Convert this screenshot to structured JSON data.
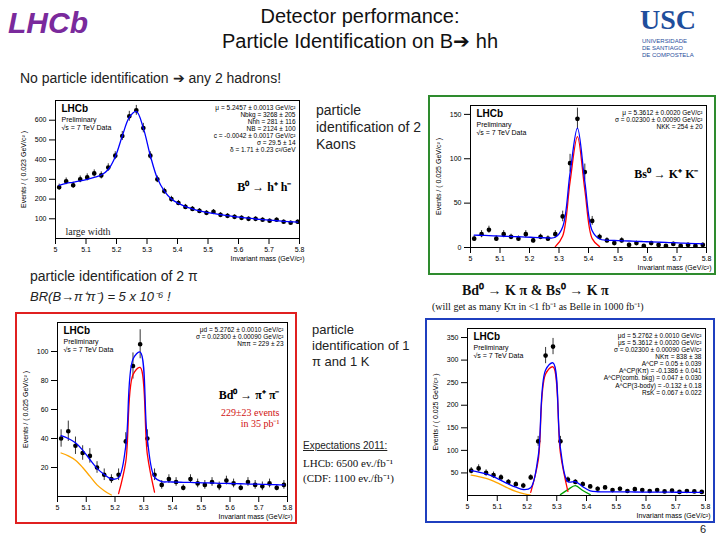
{
  "slide": {
    "logo_left": "LHCb",
    "logo_right": [
      "USC",
      "UNIVERSIDADE",
      "DE SANTIAGO",
      "DE COMPOSTELA"
    ],
    "title": [
      "Detector performance:",
      "Particle Identification on B➔ hh"
    ],
    "subtitle": "No particle identification ➔ any 2 hadrons!",
    "pid_kk": "particle identification of 2 Kaons",
    "pid_pipi": "particle identification of 2 π",
    "br": "BR(B→π⁺π⁻) = 5 x 10⁻⁶ !",
    "pid_kpi": "particle identification of 1 π and 1 K",
    "kpi_channel": "Bd⁰ → K π  &  Bs⁰ → K π",
    "kpi_note": "(will get as many Kπ in <1 fb⁻¹ as Belle in 1000 fb⁻¹)",
    "expectations": [
      "Expectations 2011:",
      "LHCb: 6500 ev./fb⁻¹",
      "(CDF: 1100 ev./fb⁻¹)"
    ],
    "page": "6"
  },
  "chart_data": [
    {
      "type": "scatter",
      "x_label": "Invariant mass (GeV/c²)",
      "y_label": "Events / ( 0.023 GeV/c² )",
      "channel": "B⁰ → h⁺ h⁻",
      "annotation": [
        "large width"
      ],
      "watermark": [
        "LHCb",
        "Preliminary",
        "√s = 7 TeV Data"
      ],
      "stats": [
        "μ = 5.2457 ± 0.0013 GeV/c²",
        "Nbkg = 3268 ± 205",
        "Nhh = 281 ± 116",
        "NB = 2124 ± 100",
        "c = -0.0042 ± 0.0017 GeV/c²",
        "σ = 29.5 ± 14",
        "δ = 1.71 ± 0.23 c²/GeV"
      ],
      "x": [
        5.012,
        5.035,
        5.058,
        5.081,
        5.104,
        5.127,
        5.15,
        5.173,
        5.196,
        5.219,
        5.242,
        5.265,
        5.288,
        5.311,
        5.334,
        5.357,
        5.38,
        5.403,
        5.426,
        5.449,
        5.472,
        5.495,
        5.518,
        5.541,
        5.564,
        5.587,
        5.61,
        5.633,
        5.656,
        5.679,
        5.702,
        5.725,
        5.748,
        5.771,
        5.794
      ],
      "series": [
        {
          "type": "scatter",
          "marker": "circle",
          "color": "#000000",
          "values": [
            260,
            290,
            270,
            300,
            310,
            330,
            320,
            360,
            420,
            520,
            620,
            650,
            560,
            420,
            300,
            240,
            200,
            180,
            160,
            150,
            140,
            130,
            135,
            120,
            115,
            110,
            105,
            100,
            100,
            95,
            90,
            95,
            85,
            80,
            85
          ],
          "errors": [
            16,
            17,
            16,
            17,
            18,
            18,
            18,
            19,
            20,
            23,
            25,
            25,
            24,
            20,
            17,
            15,
            14,
            13,
            13,
            12,
            12,
            11,
            12,
            11,
            11,
            10,
            10,
            10,
            10,
            10,
            9,
            10,
            9,
            9,
            9
          ]
        },
        {
          "type": "line",
          "line_style": "solid",
          "color": "#0000ff",
          "values": [
            270,
            280,
            285,
            292,
            300,
            310,
            322,
            350,
            415,
            520,
            615,
            645,
            560,
            420,
            305,
            240,
            200,
            178,
            162,
            150,
            140,
            133,
            127,
            121,
            116,
            111,
            107,
            103,
            99,
            96,
            93,
            90,
            87,
            85,
            83
          ]
        }
      ],
      "xlim": [
        5,
        5.8
      ],
      "xticks": [
        5,
        5.1,
        5.2,
        5.3,
        5.4,
        5.5,
        5.6,
        5.7,
        5.8
      ],
      "ylim": [
        0,
        700
      ],
      "yticks": [
        100,
        200,
        300,
        400,
        500,
        600
      ]
    },
    {
      "type": "scatter",
      "x_label": "Invariant mass (GeV/c²)",
      "y_label": "Events / ( 0.025 GeV/c² )",
      "channel": "Bs⁰ → K⁺ K⁻",
      "watermark": [
        "LHCb",
        "Preliminary",
        "√s = 7 TeV Data"
      ],
      "stats": [
        "μ = 5.3612 ± 0.0020 GeV/c²",
        "σ = 0.02300 ± 0.00090 GeV/c²",
        "NKK = 254 ± 20"
      ],
      "x": [
        5.0125,
        5.0375,
        5.0625,
        5.0875,
        5.1125,
        5.1375,
        5.1625,
        5.1875,
        5.2125,
        5.2375,
        5.2625,
        5.2875,
        5.3125,
        5.3375,
        5.3625,
        5.3875,
        5.4125,
        5.4375,
        5.4625,
        5.4875,
        5.5125,
        5.5375,
        5.5625,
        5.5875,
        5.6125,
        5.6375,
        5.6625,
        5.6875,
        5.7125,
        5.7375,
        5.7625,
        5.7875
      ],
      "series": [
        {
          "type": "scatter",
          "marker": "circle",
          "color": "#000000",
          "values": [
            10,
            15,
            20,
            10,
            15,
            12,
            10,
            15,
            8,
            12,
            10,
            15,
            35,
            95,
            145,
            85,
            30,
            12,
            8,
            5,
            8,
            3,
            5,
            2,
            5,
            3,
            2,
            4,
            2,
            3,
            2,
            3
          ],
          "errors": [
            3,
            4,
            4,
            3,
            4,
            3,
            3,
            4,
            3,
            3,
            3,
            4,
            6,
            10,
            12,
            9,
            5,
            3,
            3,
            2,
            3,
            2,
            2,
            1,
            2,
            2,
            1,
            2,
            1,
            2,
            1,
            2
          ]
        },
        {
          "type": "line",
          "line_style": "solid",
          "color": "#ff0000",
          "values": [
            null,
            null,
            null,
            null,
            null,
            null,
            null,
            null,
            null,
            null,
            null,
            1,
            13,
            74,
            125,
            65,
            10,
            1,
            null,
            null,
            null,
            null,
            null,
            null,
            null,
            null,
            null,
            null,
            null,
            null,
            null,
            null
          ]
        },
        {
          "type": "line",
          "line_style": "solid",
          "color": "#0000ff",
          "values": [
            14,
            13.7,
            13.4,
            13,
            12.7,
            12.4,
            12.1,
            11.8,
            11.4,
            11.1,
            10.8,
            11.5,
            23.2,
            83.8,
            134.5,
            74.2,
            18.9,
            9.6,
            8.2,
            7.9,
            7.6,
            7.3,
            7,
            6.6,
            6.3,
            6,
            5.7,
            5.4,
            5,
            4.7,
            4.4,
            4.1
          ]
        }
      ],
      "xlim": [
        5,
        5.8
      ],
      "xticks": [
        5,
        5.1,
        5.2,
        5.3,
        5.4,
        5.5,
        5.6,
        5.7,
        5.8
      ],
      "ylim": [
        0,
        160
      ],
      "yticks": [
        0,
        50,
        100,
        150
      ]
    },
    {
      "type": "scatter",
      "x_label": "Invariant mass (GeV/c²)",
      "y_label": "Events / ( 0.025 GeV/c² )",
      "channel": "Bd⁰ → π⁺ π⁻",
      "annotation": [
        "229±23 events",
        "in 35 pb⁻¹"
      ],
      "watermark": [
        "LHCb",
        "Preliminary",
        "√s = 7 TeV Data"
      ],
      "stats": [
        "μd = 5.2762 ± 0.0010 GeV/c²",
        "σ = 0.02300 ± 0.00090 GeV/c²",
        "Nππ = 229 ± 23"
      ],
      "x": [
        5.0125,
        5.0375,
        5.0625,
        5.0875,
        5.1125,
        5.1375,
        5.1625,
        5.1875,
        5.2125,
        5.2375,
        5.2625,
        5.2875,
        5.3125,
        5.3375,
        5.3625,
        5.3875,
        5.4125,
        5.4375,
        5.4625,
        5.4875,
        5.5125,
        5.5375,
        5.5625,
        5.5875,
        5.6125,
        5.6375,
        5.6625,
        5.6875,
        5.7125,
        5.7375,
        5.7625,
        5.7875
      ],
      "series": [
        {
          "type": "scatter",
          "marker": "circle",
          "color": "#000000",
          "values": [
            40,
            45,
            35,
            30,
            28,
            20,
            15,
            12,
            15,
            38,
            90,
            105,
            40,
            15,
            8,
            12,
            10,
            6,
            12,
            9,
            8,
            10,
            7,
            11,
            9,
            6,
            10,
            8,
            7,
            9,
            6,
            8
          ],
          "errors": [
            6,
            7,
            6,
            5,
            5,
            4,
            4,
            3,
            4,
            6,
            9,
            10,
            6,
            4,
            3,
            3,
            3,
            2,
            3,
            3,
            3,
            3,
            3,
            3,
            3,
            2,
            3,
            3,
            3,
            3,
            2,
            3
          ]
        },
        {
          "type": "line",
          "line_style": "solid",
          "color": "#ffa500",
          "values": [
            30,
            28,
            25,
            20,
            14,
            8,
            4,
            1,
            null,
            null,
            null,
            null,
            null,
            null,
            null,
            null,
            null,
            null,
            null,
            null,
            null,
            null,
            null,
            null,
            null,
            null,
            null,
            null,
            null,
            null,
            null,
            null
          ]
        },
        {
          "type": "line",
          "line_style": "solid",
          "color": "#ff0000",
          "values": [
            null,
            null,
            null,
            null,
            null,
            null,
            null,
            null,
            2,
            24,
            84,
            89,
            29,
            3,
            null,
            null,
            null,
            null,
            null,
            null,
            null,
            null,
            null,
            null,
            null,
            null,
            null,
            null,
            null,
            null,
            null,
            null
          ]
        },
        {
          "type": "line",
          "line_style": "solid",
          "color": "#0000ff",
          "values": [
            42,
            40,
            37,
            32,
            25.5,
            19.4,
            15.2,
            12.1,
            13,
            34.8,
            94.7,
            99.6,
            39.4,
            13.3,
            10.2,
            10.1,
            9.9,
            9.8,
            9.7,
            9.5,
            9.4,
            9.3,
            9.1,
            9,
            8.9,
            8.8,
            8.6,
            8.5,
            8.4,
            8.2,
            8.1,
            8
          ]
        }
      ],
      "xlim": [
        5,
        5.8
      ],
      "xticks": [
        5,
        5.1,
        5.2,
        5.3,
        5.4,
        5.5,
        5.6,
        5.7,
        5.8
      ],
      "ylim": [
        0,
        120
      ],
      "yticks": [
        20,
        40,
        60,
        80,
        100
      ]
    },
    {
      "type": "scatter",
      "x_label": "Invariant mass (GeV/c²)",
      "y_label": "Events / ( 0.025 GeV/c² )",
      "watermark": [
        "LHCb",
        "Preliminary",
        "√s = 7 TeV Data"
      ],
      "stats": [
        "μd = 5.2762 ± 0.0010 GeV/c²",
        "μs = 5.3612 ± 0.0020 GeV/c²",
        "σ = 0.02300 ± 0.00090 GeV/c²",
        "NKπ = 838 ± 38",
        "A^CP = 0.05 ± 0.039",
        "A^CP(Kπ) = -0.1386 ± 0.041",
        "A^CP(comb. bkg) = 0.047 ± 0.030",
        "A^CP(3-body) = -0.132 ± 0.18",
        "RsK = 0.067 ± 0.022"
      ],
      "x": [
        5.0125,
        5.0375,
        5.0625,
        5.0875,
        5.1125,
        5.1375,
        5.1625,
        5.1875,
        5.2125,
        5.2375,
        5.2625,
        5.2875,
        5.3125,
        5.3375,
        5.3625,
        5.3875,
        5.4125,
        5.4375,
        5.4625,
        5.4875,
        5.5125,
        5.5375,
        5.5625,
        5.5875,
        5.6125,
        5.6375,
        5.6625,
        5.6875,
        5.7125,
        5.7375,
        5.7625,
        5.7875
      ],
      "series": [
        {
          "type": "scatter",
          "marker": "circle",
          "color": "#000000",
          "values": [
            55,
            60,
            50,
            45,
            40,
            30,
            25,
            22,
            40,
            120,
            310,
            330,
            120,
            35,
            30,
            25,
            20,
            15,
            18,
            12,
            15,
            10,
            14,
            12,
            10,
            12,
            9,
            11,
            8,
            10,
            9,
            8
          ],
          "errors": [
            7,
            8,
            7,
            7,
            6,
            5,
            5,
            5,
            6,
            11,
            18,
            18,
            11,
            6,
            5,
            5,
            4,
            4,
            4,
            3,
            4,
            3,
            4,
            3,
            3,
            3,
            3,
            3,
            3,
            3,
            3,
            3
          ]
        },
        {
          "type": "line",
          "line_style": "solid",
          "color": "#ffa500",
          "values": [
            45,
            42,
            38,
            32,
            24,
            16,
            9,
            4,
            1,
            null,
            null,
            null,
            null,
            null,
            null,
            null,
            null,
            null,
            null,
            null,
            null,
            null,
            null,
            null,
            null,
            null,
            null,
            null,
            null,
            null,
            null,
            null
          ]
        },
        {
          "type": "line",
          "line_style": "solid",
          "color": "#00a000",
          "values": [
            null,
            null,
            null,
            null,
            null,
            null,
            null,
            null,
            null,
            null,
            null,
            null,
            2,
            13,
            22,
            11,
            2,
            null,
            null,
            null,
            null,
            null,
            null,
            null,
            null,
            null,
            null,
            null,
            null,
            null,
            null,
            null
          ]
        },
        {
          "type": "line",
          "line_style": "solid",
          "color": "#ff0000",
          "values": [
            null,
            null,
            null,
            null,
            null,
            null,
            null,
            null,
            7,
            77,
            269,
            285,
            93,
            9,
            null,
            null,
            null,
            null,
            null,
            null,
            null,
            null,
            null,
            null,
            null,
            null,
            null,
            null,
            null,
            null,
            null,
            null
          ]
        },
        {
          "type": "line",
          "line_style": "solid",
          "color": "#0000ff",
          "values": [
            55,
            51.9,
            47.8,
            41.7,
            33.6,
            25.5,
            18.4,
            13.3,
            17.2,
            86.1,
            278,
            293.9,
            103.8,
            30.7,
            30.6,
            19.5,
            10.4,
            8.3,
            8.2,
            8.1,
            8,
            7.9,
            7.8,
            7.7,
            7.6,
            7.5,
            7.4,
            7.3,
            7.2,
            7.1,
            7,
            6.9
          ]
        }
      ],
      "xlim": [
        5,
        5.8
      ],
      "xticks": [
        5,
        5.1,
        5.2,
        5.3,
        5.4,
        5.5,
        5.6,
        5.7,
        5.8
      ],
      "ylim": [
        0,
        370
      ],
      "yticks": [
        50,
        100,
        150,
        200,
        250,
        300,
        350
      ]
    }
  ]
}
